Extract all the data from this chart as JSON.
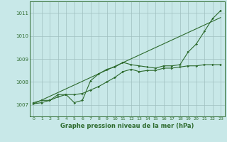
{
  "bg_color": "#c8e8e8",
  "line_color": "#2d6a2d",
  "grid_color": "#9fbfbf",
  "xlabel": "Graphe pression niveau de la mer (hPa)",
  "xlim": [
    -0.5,
    23.5
  ],
  "ylim": [
    1006.5,
    1011.5
  ],
  "yticks": [
    1007,
    1008,
    1009,
    1010,
    1011
  ],
  "xticks": [
    0,
    1,
    2,
    3,
    4,
    5,
    6,
    7,
    8,
    9,
    10,
    11,
    12,
    13,
    14,
    15,
    16,
    17,
    18,
    19,
    20,
    21,
    22,
    23
  ],
  "series1": [
    [
      0,
      1007.1
    ],
    [
      1,
      1007.2
    ],
    [
      2,
      1007.2
    ],
    [
      3,
      1007.45
    ],
    [
      4,
      1007.45
    ],
    [
      5,
      1007.1
    ],
    [
      6,
      1007.2
    ],
    [
      7,
      1008.05
    ],
    [
      8,
      1008.35
    ],
    [
      9,
      1008.55
    ],
    [
      10,
      1008.65
    ],
    [
      11,
      1008.85
    ],
    [
      12,
      1008.75
    ],
    [
      13,
      1008.7
    ],
    [
      14,
      1008.65
    ],
    [
      15,
      1008.6
    ],
    [
      16,
      1008.7
    ],
    [
      17,
      1008.7
    ],
    [
      18,
      1008.75
    ],
    [
      19,
      1009.3
    ],
    [
      20,
      1009.65
    ],
    [
      21,
      1010.2
    ],
    [
      22,
      1010.75
    ],
    [
      23,
      1011.1
    ]
  ],
  "series2": [
    [
      0,
      1007.05
    ],
    [
      1,
      1007.1
    ],
    [
      2,
      1007.2
    ],
    [
      3,
      1007.35
    ],
    [
      4,
      1007.45
    ],
    [
      5,
      1007.45
    ],
    [
      6,
      1007.5
    ],
    [
      7,
      1007.65
    ],
    [
      8,
      1007.8
    ],
    [
      9,
      1008.0
    ],
    [
      10,
      1008.2
    ],
    [
      11,
      1008.45
    ],
    [
      12,
      1008.55
    ],
    [
      13,
      1008.45
    ],
    [
      14,
      1008.5
    ],
    [
      15,
      1008.5
    ],
    [
      16,
      1008.6
    ],
    [
      17,
      1008.6
    ],
    [
      18,
      1008.65
    ],
    [
      19,
      1008.7
    ],
    [
      20,
      1008.7
    ],
    [
      21,
      1008.75
    ],
    [
      22,
      1008.75
    ],
    [
      23,
      1008.75
    ]
  ],
  "series3": [
    [
      0,
      1007.05
    ],
    [
      23,
      1010.8
    ]
  ]
}
